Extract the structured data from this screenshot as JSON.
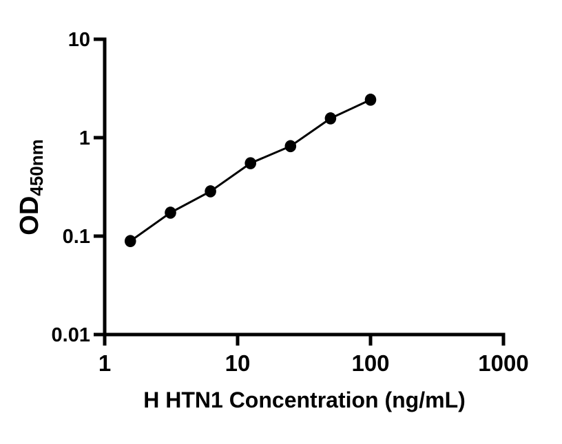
{
  "figure": {
    "background": "#ffffff",
    "foreground": "#000000"
  },
  "chart_data": {
    "type": "scatter",
    "subtype": "line-with-filled-circle-markers",
    "title": "",
    "xlabel": "H HTN1 Concentration (ng/mL)",
    "ylabel": "OD450nm",
    "ylabel_main": "OD",
    "ylabel_sub": "450nm",
    "x_scale": "log",
    "y_scale": "log",
    "xlim": [
      1,
      1000
    ],
    "ylim": [
      0.01,
      10
    ],
    "x_ticks": [
      1,
      10,
      100,
      1000
    ],
    "x_tick_labels": [
      "1",
      "10",
      "100",
      "1000"
    ],
    "y_ticks": [
      10,
      1,
      0.1,
      0.01
    ],
    "y_tick_labels": [
      "10",
      "1",
      "0.1",
      "0.01"
    ],
    "grid": "off",
    "legend": "none",
    "x": [
      1.56,
      3.125,
      6.25,
      12.5,
      25,
      50,
      100
    ],
    "y": [
      0.089,
      0.173,
      0.285,
      0.55,
      0.82,
      1.57,
      2.43
    ],
    "line_color": "#000000",
    "marker_color": "#000000",
    "axis_color": "#000000"
  }
}
